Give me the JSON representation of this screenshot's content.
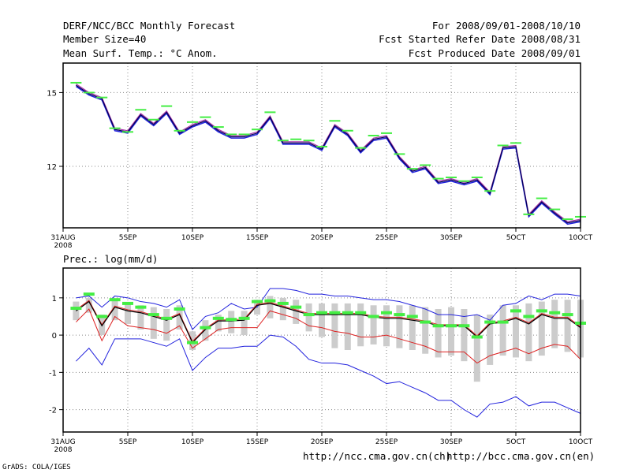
{
  "header": {
    "title": "DERF/NCC/BCC Monthly Forecast",
    "member_size": "Member Size=40",
    "variable": "Mean Surf. Temp.: °C Anom.",
    "period": "For 2008/09/01-2008/10/10",
    "start_ref": "Fcst Started Refer Date 2008/08/31",
    "produced": "Fcst Produced Date 2008/09/01"
  },
  "footer": {
    "grads": "GrADS: COLA/IGES",
    "url_ch": "http://ncc.cma.gov.cn(ch)",
    "url_en": "http://bcc.cma.gov.cn(en)"
  },
  "colors": {
    "green": "#44ee44",
    "blue": "#2222dd",
    "red": "#dd2222",
    "black": "#000000",
    "purple": "#aa33aa",
    "gray": "#cccccc"
  },
  "chart_data": [
    {
      "type": "line",
      "title": "Mean Surf. Temp.: °C Anom.",
      "x_start_label": "31AUG",
      "year_label": "2008",
      "x_tick_labels": [
        "5SEP",
        "10SEP",
        "15SEP",
        "20SEP",
        "25SEP",
        "30SEP",
        "5OCT",
        "10OCT"
      ],
      "x_tick_days": [
        5,
        10,
        15,
        20,
        25,
        30,
        35,
        40
      ],
      "xlim": [
        0,
        40
      ],
      "ylim": [
        9.5,
        16.2
      ],
      "y_ticks": [
        12,
        15
      ],
      "days": [
        1,
        2,
        3,
        4,
        5,
        6,
        7,
        8,
        9,
        10,
        11,
        12,
        13,
        14,
        15,
        16,
        17,
        18,
        19,
        20,
        21,
        22,
        23,
        24,
        25,
        26,
        27,
        28,
        29,
        30,
        31,
        32,
        33,
        34,
        35,
        36,
        37,
        38,
        39,
        40
      ],
      "series": [
        {
          "name": "ensemble-mean",
          "values": [
            15.3,
            14.95,
            14.75,
            13.5,
            13.4,
            14.1,
            13.7,
            14.2,
            13.35,
            13.65,
            13.85,
            13.45,
            13.2,
            13.2,
            13.35,
            14.0,
            12.95,
            12.95,
            12.95,
            12.7,
            13.65,
            13.3,
            12.6,
            13.1,
            13.2,
            12.35,
            11.8,
            11.95,
            11.35,
            11.45,
            11.3,
            11.45,
            10.9,
            12.75,
            12.8,
            10.0,
            10.55,
            10.1,
            9.7,
            9.8
          ]
        },
        {
          "name": "upper-member",
          "values": [
            15.35,
            15.0,
            14.8,
            13.55,
            13.45,
            14.15,
            13.75,
            14.25,
            13.4,
            13.7,
            13.9,
            13.5,
            13.25,
            13.25,
            13.4,
            14.05,
            13.0,
            13.0,
            13.0,
            12.75,
            13.7,
            13.35,
            12.65,
            13.15,
            13.25,
            12.4,
            11.85,
            12.0,
            11.4,
            11.5,
            11.35,
            11.5,
            10.95,
            12.8,
            12.85,
            10.05,
            10.6,
            10.15,
            9.75,
            9.85
          ]
        },
        {
          "name": "lower-member",
          "values": [
            15.25,
            14.9,
            14.7,
            13.45,
            13.35,
            14.05,
            13.65,
            14.15,
            13.3,
            13.6,
            13.8,
            13.4,
            13.15,
            13.15,
            13.3,
            13.95,
            12.9,
            12.9,
            12.9,
            12.65,
            13.6,
            13.25,
            12.55,
            13.05,
            13.15,
            12.3,
            11.75,
            11.9,
            11.3,
            11.4,
            11.25,
            11.4,
            10.85,
            12.7,
            12.75,
            9.95,
            10.5,
            10.05,
            9.65,
            9.75
          ]
        },
        {
          "name": "observation-marks",
          "values": [
            15.4,
            15.0,
            14.8,
            13.55,
            13.4,
            14.3,
            13.9,
            14.45,
            13.45,
            13.8,
            14.0,
            13.6,
            13.3,
            13.3,
            13.5,
            14.2,
            13.05,
            13.1,
            13.05,
            12.8,
            13.85,
            13.45,
            12.75,
            13.25,
            13.35,
            12.5,
            11.9,
            12.05,
            11.5,
            11.55,
            11.4,
            11.55,
            11.0,
            12.85,
            12.95,
            10.05,
            10.7,
            10.25,
            9.85,
            9.95
          ]
        }
      ]
    },
    {
      "type": "line",
      "title": "Prec.: log(mm/d)",
      "x_start_label": "31AUG",
      "year_label": "2008",
      "x_tick_labels": [
        "5SEP",
        "10SEP",
        "15SEP",
        "20SEP",
        "25SEP",
        "30SEP",
        "5OCT",
        "10OCT"
      ],
      "x_tick_days": [
        5,
        10,
        15,
        20,
        25,
        30,
        35,
        40
      ],
      "xlim": [
        0,
        40
      ],
      "ylim": [
        -2.6,
        1.8
      ],
      "y_ticks": [
        -2,
        -1,
        0,
        1
      ],
      "days": [
        1,
        2,
        3,
        4,
        5,
        6,
        7,
        8,
        9,
        10,
        11,
        12,
        13,
        14,
        15,
        16,
        17,
        18,
        19,
        20,
        21,
        22,
        23,
        24,
        25,
        26,
        27,
        28,
        29,
        30,
        31,
        32,
        33,
        34,
        35,
        36,
        37,
        38,
        39,
        40
      ],
      "series": [
        {
          "name": "ensemble-max",
          "values": [
            1.0,
            1.05,
            0.75,
            1.05,
            1.0,
            0.9,
            0.85,
            0.75,
            0.95,
            0.15,
            0.5,
            0.6,
            0.85,
            0.7,
            0.75,
            1.25,
            1.25,
            1.2,
            1.1,
            1.1,
            1.05,
            1.05,
            1.0,
            0.95,
            0.95,
            0.9,
            0.8,
            0.7,
            0.55,
            0.55,
            0.5,
            0.55,
            0.4,
            0.8,
            0.85,
            1.05,
            0.95,
            1.1,
            1.1,
            1.05
          ]
        },
        {
          "name": "ensemble-min",
          "values": [
            -0.7,
            -0.35,
            -0.8,
            -0.1,
            -0.1,
            -0.1,
            -0.2,
            -0.3,
            -0.1,
            -0.95,
            -0.6,
            -0.35,
            -0.35,
            -0.3,
            -0.3,
            0.0,
            -0.05,
            -0.3,
            -0.65,
            -0.75,
            -0.75,
            -0.8,
            -0.95,
            -1.1,
            -1.3,
            -1.25,
            -1.4,
            -1.55,
            -1.75,
            -1.75,
            -2.0,
            -2.2,
            -1.85,
            -1.8,
            -1.65,
            -1.9,
            -1.8,
            -1.8,
            -1.95,
            -2.1
          ]
        },
        {
          "name": "lower-percentile",
          "values": [
            0.35,
            0.7,
            -0.15,
            0.5,
            0.25,
            0.2,
            0.15,
            0.05,
            0.25,
            -0.35,
            -0.1,
            0.15,
            0.2,
            0.2,
            0.2,
            0.65,
            0.55,
            0.45,
            0.25,
            0.2,
            0.1,
            0.05,
            -0.05,
            -0.05,
            0.0,
            -0.1,
            -0.2,
            -0.3,
            -0.45,
            -0.45,
            -0.45,
            -0.75,
            -0.55,
            -0.45,
            -0.35,
            -0.5,
            -0.35,
            -0.25,
            -0.3,
            -0.65
          ]
        },
        {
          "name": "ensemble-mean",
          "values": [
            0.65,
            0.9,
            0.25,
            0.75,
            0.65,
            0.6,
            0.5,
            0.4,
            0.55,
            -0.2,
            0.15,
            0.38,
            0.38,
            0.4,
            0.8,
            0.85,
            0.75,
            0.65,
            0.55,
            0.55,
            0.55,
            0.55,
            0.55,
            0.48,
            0.45,
            0.45,
            0.4,
            0.35,
            0.25,
            0.25,
            0.25,
            -0.05,
            0.3,
            0.35,
            0.45,
            0.3,
            0.55,
            0.45,
            0.45,
            0.2
          ]
        },
        {
          "name": "observation-marks",
          "values": [
            0.72,
            1.1,
            0.5,
            0.95,
            0.85,
            0.75,
            0.55,
            0.45,
            0.7,
            -0.2,
            0.2,
            0.45,
            0.42,
            0.45,
            0.9,
            0.92,
            0.85,
            0.75,
            0.55,
            0.6,
            0.6,
            0.6,
            0.6,
            0.5,
            0.6,
            0.55,
            0.5,
            0.35,
            0.25,
            0.25,
            0.25,
            -0.05,
            0.35,
            0.35,
            0.65,
            0.5,
            0.65,
            0.6,
            0.55,
            0.32
          ]
        },
        {
          "name": "spread-box-high",
          "values": [
            0.9,
            1.0,
            0.55,
            0.95,
            0.85,
            0.8,
            0.75,
            0.7,
            0.8,
            0.1,
            0.4,
            0.55,
            0.65,
            0.65,
            0.95,
            1.05,
            1.0,
            0.95,
            0.85,
            0.85,
            0.85,
            0.85,
            0.85,
            0.8,
            0.8,
            0.8,
            0.8,
            0.75,
            0.7,
            0.75,
            0.7,
            0.55,
            0.55,
            0.8,
            0.8,
            0.85,
            0.9,
            0.95,
            0.95,
            0.95
          ]
        },
        {
          "name": "spread-box-low",
          "values": [
            0.4,
            0.6,
            0.0,
            0.4,
            0.3,
            0.15,
            -0.1,
            -0.15,
            0.15,
            -0.4,
            -0.15,
            0.1,
            0.05,
            0.0,
            0.55,
            0.45,
            0.4,
            0.3,
            0.1,
            -0.05,
            -0.35,
            -0.4,
            -0.3,
            -0.25,
            -0.3,
            -0.35,
            -0.4,
            -0.5,
            -0.6,
            -0.55,
            -0.7,
            -1.25,
            -0.8,
            -0.55,
            -0.6,
            -0.7,
            -0.55,
            -0.35,
            -0.45,
            -0.6
          ]
        }
      ]
    }
  ]
}
